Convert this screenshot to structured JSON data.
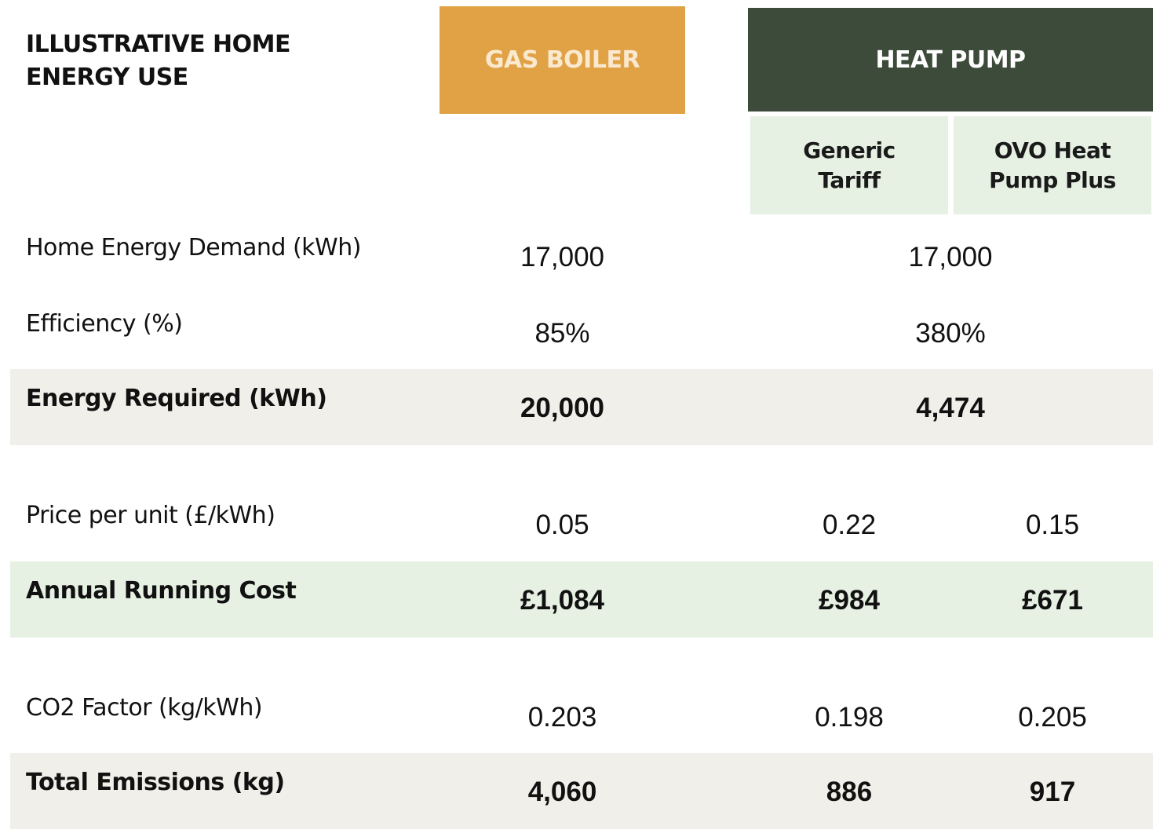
{
  "title": "ILLUSTRATIVE HOME ENERGY USE",
  "colors": {
    "gas_header": "#e0a244",
    "heat_pump_header": "#3d4b3a",
    "sub_header": "#e6f1e4",
    "beige_row": "#f1efea",
    "green_row": "#e6f1e4"
  },
  "headers": {
    "gas_boiler": "GAS BOILER",
    "heat_pump": "HEAT PUMP",
    "generic_tariff": "Generic\nTariff",
    "ovo_plus": "OVO Heat\nPump Plus"
  },
  "rows": {
    "demand": {
      "label": "Home Energy Demand (kWh)",
      "gas": "17,000",
      "heat_pump": "17,000"
    },
    "efficiency": {
      "label": "Efficiency (%)",
      "gas": "85%",
      "heat_pump": "380%"
    },
    "energy_required": {
      "label": "Energy Required (kWh)",
      "gas": "20,000",
      "heat_pump": "4,474"
    },
    "price": {
      "label": "Price per unit (£/kWh)",
      "gas": "0.05",
      "generic": "0.22",
      "ovo": "0.15"
    },
    "running_cost": {
      "label": "Annual Running Cost",
      "gas": "£1,084",
      "generic": "£984",
      "ovo": "£671"
    },
    "co2_factor": {
      "label": "CO2 Factor (kg/kWh)",
      "gas": "0.203",
      "generic": "0.198",
      "ovo": "0.205"
    },
    "emissions": {
      "label": "Total Emissions (kg)",
      "gas": "4,060",
      "generic": "886",
      "ovo": "917"
    }
  }
}
